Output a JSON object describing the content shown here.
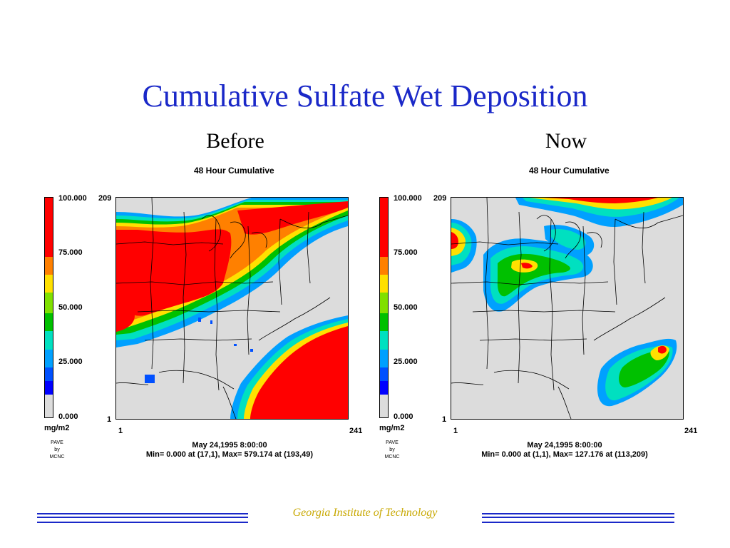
{
  "slide": {
    "title": "Cumulative Sulfate Wet Deposition",
    "footer": "Georgia Institute of Technology"
  },
  "panels": [
    {
      "label": "Before",
      "title": "48 Hour Cumulative",
      "scale": {
        "ticks": [
          "100.000",
          "75.000",
          "50.000",
          "25.000",
          "0.000"
        ],
        "units": "mg/m2"
      },
      "axis": {
        "y_top": "209",
        "y_bottom": "1",
        "x_left": "1",
        "x_right": "241"
      },
      "credit": [
        "PAVE",
        "by",
        "MCNC"
      ],
      "timestamp": "May 24,1995 8:00:00",
      "minmax": "Min=   0.000 at (17,1), Max= 579.174 at (193,49)"
    },
    {
      "label": "Now",
      "title": "48 Hour Cumulative",
      "scale": {
        "ticks": [
          "100.000",
          "75.000",
          "50.000",
          "25.000",
          "0.000"
        ],
        "units": "mg/m2"
      },
      "axis": {
        "y_top": "209",
        "y_bottom": "1",
        "x_left": "1",
        "x_right": "241"
      },
      "credit": [
        "PAVE",
        "by",
        "MCNC"
      ],
      "timestamp": "May 24,1995 8:00:00",
      "minmax": "Min=   0.000 at (1,1), Max= 127.176 at (113,209)"
    }
  ],
  "colors": {
    "title": "#1a28c8",
    "footer_text": "#c8a800",
    "scale_top_to_bottom": [
      "#ff0000",
      "#ff8000",
      "#ffff00",
      "#80e000",
      "#00c000",
      "#00e0c0",
      "#00a0ff",
      "#0050ff",
      "#0000ff",
      "#dcdcdc"
    ]
  }
}
